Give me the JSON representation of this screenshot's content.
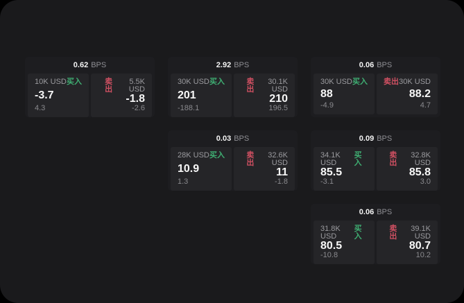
{
  "app": {
    "description": "dark trading quote dashboard",
    "bps_unit_label": "BPS"
  },
  "colors": {
    "outer_background": "#000000",
    "panel_background": "#1a1a1c",
    "card_background": "#1d1d20",
    "tile_background": "#252528",
    "buy": "#3fae72",
    "sell": "#d05062",
    "primary_text": "#f5f5f5",
    "muted_text": "#8f8f94"
  },
  "cards": [
    {
      "row": 1,
      "col": 1,
      "bps_value": "0.62",
      "bps_unit": "BPS",
      "buy": {
        "amount": "10K USD",
        "side_label": "买入",
        "price": "-3.7",
        "delta": "4.3"
      },
      "sell": {
        "amount": "5.5K USD",
        "side_label": "卖出",
        "price": "-1.8",
        "delta": "-2.6"
      }
    },
    {
      "row": 1,
      "col": 2,
      "bps_value": "2.92",
      "bps_unit": "BPS",
      "buy": {
        "amount": "30K USD",
        "side_label": "买入",
        "price": "201",
        "delta": "-188.1"
      },
      "sell": {
        "amount": "30.1K USD",
        "side_label": "卖出",
        "price": "210",
        "delta": "196.5"
      }
    },
    {
      "row": 1,
      "col": 3,
      "bps_value": "0.06",
      "bps_unit": "BPS",
      "buy": {
        "amount": "30K USD",
        "side_label": "买入",
        "price": "88",
        "delta": "-4.9"
      },
      "sell": {
        "amount": "30K USD",
        "side_label": "卖出",
        "price": "88.2",
        "delta": "4.7"
      }
    },
    {
      "row": 2,
      "col": 2,
      "bps_value": "0.03",
      "bps_unit": "BPS",
      "buy": {
        "amount": "28K USD",
        "side_label": "买入",
        "price": "10.9",
        "delta": "1.3"
      },
      "sell": {
        "amount": "32.6K USD",
        "side_label": "卖出",
        "price": "11",
        "delta": "-1.8"
      }
    },
    {
      "row": 2,
      "col": 3,
      "bps_value": "0.09",
      "bps_unit": "BPS",
      "buy": {
        "amount": "34.1K USD",
        "side_label": "买入",
        "price": "85.5",
        "delta": "-3.1"
      },
      "sell": {
        "amount": "32.8K USD",
        "side_label": "卖出",
        "price": "85.8",
        "delta": "3.0"
      }
    },
    {
      "row": 3,
      "col": 3,
      "bps_value": "0.06",
      "bps_unit": "BPS",
      "buy": {
        "amount": "31.8K USD",
        "side_label": "买入",
        "price": "80.5",
        "delta": "-10.8"
      },
      "sell": {
        "amount": "39.1K USD",
        "side_label": "卖出",
        "price": "80.7",
        "delta": "10.2"
      }
    }
  ]
}
